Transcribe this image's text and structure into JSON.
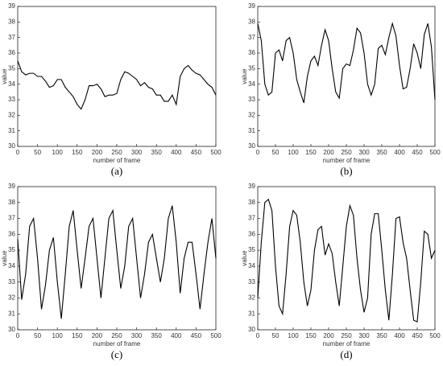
{
  "chart_data": [
    {
      "type": "line",
      "caption": "(a)",
      "xlabel": "number of frame",
      "ylabel": "value",
      "xlim": [
        0,
        500
      ],
      "ylim": [
        30,
        39
      ],
      "xticks": [
        0,
        50,
        100,
        150,
        200,
        250,
        300,
        350,
        400,
        450,
        500
      ],
      "yticks": [
        30,
        31,
        32,
        33,
        34,
        35,
        36,
        37,
        38,
        39
      ],
      "x": [
        0,
        10,
        20,
        30,
        40,
        50,
        60,
        70,
        80,
        90,
        100,
        110,
        120,
        130,
        140,
        150,
        160,
        170,
        180,
        190,
        200,
        210,
        220,
        230,
        240,
        250,
        260,
        270,
        280,
        290,
        300,
        310,
        320,
        330,
        340,
        350,
        360,
        370,
        380,
        390,
        400,
        410,
        420,
        430,
        440,
        450,
        460,
        470,
        480,
        490,
        500
      ],
      "series": [
        {
          "color": "#000000",
          "values": [
            35.5,
            34.8,
            34.6,
            34.7,
            34.7,
            34.5,
            34.5,
            34.2,
            33.8,
            33.9,
            34.3,
            34.3,
            33.8,
            33.5,
            33.2,
            32.7,
            32.4,
            33.0,
            33.9,
            33.9,
            34.0,
            33.7,
            33.2,
            33.3,
            33.3,
            33.4,
            34.3,
            34.8,
            34.7,
            34.5,
            34.3,
            33.9,
            34.1,
            33.8,
            33.7,
            33.3,
            33.3,
            32.9,
            32.9,
            33.3,
            32.7,
            34.5,
            35.0,
            35.2,
            34.9,
            34.7,
            34.6,
            34.3,
            34.0,
            33.8,
            33.3
          ]
        }
      ]
    },
    {
      "type": "line",
      "caption": "(b)",
      "xlabel": "number of frame",
      "ylabel": "value",
      "xlim": [
        0,
        500
      ],
      "ylim": [
        30,
        39
      ],
      "xticks": [
        0,
        50,
        100,
        150,
        200,
        250,
        300,
        350,
        400,
        450,
        500
      ],
      "yticks": [
        30,
        31,
        32,
        33,
        34,
        35,
        36,
        37,
        38,
        39
      ],
      "x": [
        0,
        10,
        20,
        30,
        40,
        50,
        60,
        70,
        80,
        90,
        100,
        110,
        120,
        130,
        140,
        150,
        160,
        170,
        180,
        190,
        200,
        210,
        220,
        230,
        240,
        250,
        260,
        270,
        280,
        290,
        300,
        310,
        320,
        330,
        340,
        350,
        360,
        370,
        380,
        390,
        400,
        410,
        420,
        430,
        440,
        450,
        460,
        470,
        480,
        490,
        500
      ],
      "series": [
        {
          "color": "#000000",
          "values": [
            37.9,
            36.8,
            34.0,
            33.3,
            33.5,
            36.0,
            36.2,
            35.5,
            36.8,
            37.0,
            36.0,
            34.3,
            33.5,
            32.8,
            34.5,
            35.5,
            35.8,
            35.2,
            36.5,
            37.5,
            36.8,
            35.0,
            33.5,
            33.1,
            35.0,
            35.3,
            35.2,
            36.2,
            37.6,
            37.3,
            36.0,
            34.0,
            33.3,
            34.0,
            36.3,
            36.5,
            35.9,
            37.0,
            37.9,
            37.1,
            35.2,
            33.7,
            33.8,
            35.0,
            36.6,
            36.0,
            35.0,
            37.2,
            37.9,
            36.4,
            33.0
          ]
        }
      ]
    },
    {
      "type": "line",
      "caption": "(c)",
      "xlabel": "number of frame",
      "ylabel": "value",
      "xlim": [
        0,
        500
      ],
      "ylim": [
        30,
        39
      ],
      "xticks": [
        0,
        50,
        100,
        150,
        200,
        250,
        300,
        350,
        400,
        450,
        500
      ],
      "yticks": [
        30,
        31,
        32,
        33,
        34,
        35,
        36,
        37,
        38,
        39
      ],
      "x": [
        0,
        10,
        20,
        30,
        40,
        50,
        60,
        70,
        80,
        90,
        100,
        110,
        120,
        130,
        140,
        150,
        160,
        170,
        180,
        190,
        200,
        210,
        220,
        230,
        240,
        250,
        260,
        270,
        280,
        290,
        300,
        310,
        320,
        330,
        340,
        350,
        360,
        370,
        380,
        390,
        400,
        410,
        420,
        430,
        440,
        450,
        460,
        470,
        480,
        490,
        500
      ],
      "series": [
        {
          "color": "#000000",
          "values": [
            35.7,
            31.9,
            33.5,
            36.5,
            37.0,
            34.5,
            31.3,
            32.8,
            35.0,
            35.8,
            33.0,
            30.7,
            33.5,
            36.5,
            37.5,
            35.0,
            32.6,
            34.5,
            36.5,
            37.0,
            34.5,
            32.0,
            34.5,
            37.0,
            37.5,
            35.0,
            32.6,
            34.0,
            36.5,
            37.0,
            34.5,
            32.0,
            33.5,
            35.5,
            36.0,
            34.5,
            33.0,
            34.5,
            37.0,
            37.8,
            35.5,
            32.3,
            34.5,
            35.5,
            35.5,
            33.5,
            31.3,
            33.5,
            35.5,
            37.0,
            34.5
          ]
        }
      ]
    },
    {
      "type": "line",
      "caption": "(d)",
      "xlabel": "number of frame",
      "ylabel": "value",
      "xlim": [
        0,
        500
      ],
      "ylim": [
        30,
        39
      ],
      "xticks": [
        0,
        50,
        100,
        150,
        200,
        250,
        300,
        350,
        400,
        450,
        500
      ],
      "yticks": [
        30,
        31,
        32,
        33,
        34,
        35,
        36,
        37,
        38,
        39
      ],
      "x": [
        0,
        10,
        20,
        30,
        40,
        50,
        60,
        70,
        80,
        90,
        100,
        110,
        120,
        130,
        140,
        150,
        160,
        170,
        180,
        190,
        200,
        210,
        220,
        230,
        240,
        250,
        260,
        270,
        280,
        290,
        300,
        310,
        320,
        330,
        340,
        350,
        360,
        370,
        380,
        390,
        400,
        410,
        420,
        430,
        440,
        450,
        460,
        470,
        480,
        490,
        500
      ],
      "series": [
        {
          "color": "#000000",
          "values": [
            32.0,
            35.5,
            38.0,
            38.2,
            37.5,
            34.0,
            31.5,
            31.0,
            33.5,
            36.5,
            37.5,
            37.2,
            35.5,
            33.0,
            31.5,
            32.5,
            35.0,
            36.3,
            36.5,
            34.7,
            35.4,
            34.8,
            33.0,
            31.5,
            34.0,
            36.5,
            37.8,
            37.2,
            34.5,
            32.5,
            31.1,
            32.0,
            36.0,
            37.3,
            37.3,
            35.0,
            32.5,
            30.6,
            33.5,
            37.0,
            37.1,
            35.5,
            34.5,
            32.5,
            30.6,
            30.5,
            33.0,
            36.2,
            36.0,
            34.5,
            35.0
          ]
        }
      ]
    }
  ]
}
